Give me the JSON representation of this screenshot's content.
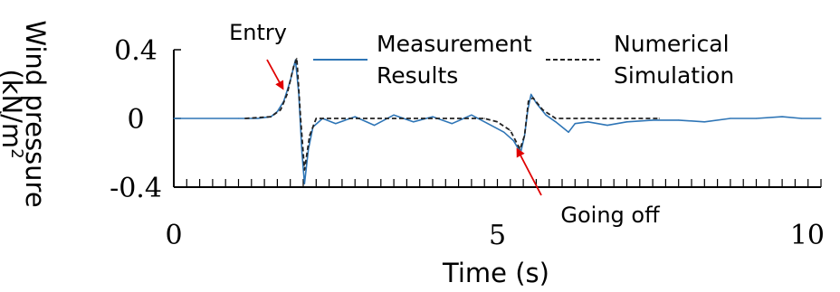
{
  "chart_data": {
    "type": "line",
    "xlabel": "Time (s)",
    "ylabel_line1": "Wind pressure",
    "ylabel_line2_base": "(kN/m",
    "ylabel_line2_sup": "2",
    "ylabel_line3": ")",
    "xlim": [
      0,
      10
    ],
    "ylim": [
      -0.4,
      0.4
    ],
    "x_tick_labels": [
      {
        "value": 0,
        "label": "0"
      },
      {
        "value": 5,
        "label": "5"
      },
      {
        "value": 10,
        "label": "10"
      }
    ],
    "y_tick_labels": [
      {
        "value": 0.4,
        "label": "0.4"
      },
      {
        "value": 0,
        "label": "0"
      },
      {
        "value": -0.4,
        "label": "-0.4"
      }
    ],
    "minor_x_ticks_step": 0.2,
    "legend_placement": "top",
    "legend": [
      {
        "line1": "Measurement",
        "line2": "Results",
        "style": "solid",
        "color": "#2e75b6"
      },
      {
        "line1": "Numerical",
        "line2": "Simulation",
        "style": "dashed",
        "color": "#222222"
      }
    ],
    "annotations": [
      {
        "text": "Entry",
        "x": 1.75,
        "y": 0.28,
        "arrow_color": "#e00000"
      },
      {
        "text": "Going off",
        "x": 5.4,
        "y": -0.18,
        "arrow_color": "#e00000"
      }
    ],
    "series": [
      {
        "name": "Measurement Results",
        "color": "#2e75b6",
        "style": "solid",
        "points": [
          [
            0,
            0.0
          ],
          [
            1.0,
            0.0
          ],
          [
            1.3,
            0.0
          ],
          [
            1.5,
            0.01
          ],
          [
            1.6,
            0.04
          ],
          [
            1.7,
            0.1
          ],
          [
            1.8,
            0.22
          ],
          [
            1.88,
            0.34
          ],
          [
            1.93,
            0.15
          ],
          [
            1.98,
            -0.2
          ],
          [
            2.02,
            -0.38
          ],
          [
            2.08,
            -0.18
          ],
          [
            2.15,
            -0.05
          ],
          [
            2.3,
            0.0
          ],
          [
            2.5,
            -0.03
          ],
          [
            2.8,
            0.01
          ],
          [
            3.1,
            -0.04
          ],
          [
            3.4,
            0.02
          ],
          [
            3.7,
            -0.02
          ],
          [
            4.0,
            0.01
          ],
          [
            4.3,
            -0.03
          ],
          [
            4.6,
            0.02
          ],
          [
            4.9,
            -0.04
          ],
          [
            5.1,
            -0.08
          ],
          [
            5.25,
            -0.13
          ],
          [
            5.36,
            -0.2
          ],
          [
            5.42,
            -0.1
          ],
          [
            5.47,
            0.05
          ],
          [
            5.52,
            0.14
          ],
          [
            5.6,
            0.09
          ],
          [
            5.75,
            0.02
          ],
          [
            5.9,
            -0.02
          ],
          [
            6.0,
            -0.05
          ],
          [
            6.1,
            -0.08
          ],
          [
            6.2,
            -0.03
          ],
          [
            6.4,
            -0.02
          ],
          [
            6.7,
            -0.04
          ],
          [
            7.0,
            -0.02
          ],
          [
            7.4,
            -0.01
          ],
          [
            7.8,
            -0.01
          ],
          [
            8.2,
            -0.02
          ],
          [
            8.6,
            0.0
          ],
          [
            9.0,
            0.0
          ],
          [
            9.4,
            0.01
          ],
          [
            9.7,
            0.0
          ],
          [
            10.0,
            0.0
          ]
        ]
      },
      {
        "name": "Numerical Simulation",
        "color": "#222222",
        "style": "dashed",
        "points": [
          [
            1.1,
            0.0
          ],
          [
            1.5,
            0.01
          ],
          [
            1.65,
            0.05
          ],
          [
            1.75,
            0.14
          ],
          [
            1.85,
            0.3
          ],
          [
            1.9,
            0.35
          ],
          [
            1.96,
            0.0
          ],
          [
            2.02,
            -0.3
          ],
          [
            2.1,
            -0.1
          ],
          [
            2.2,
            0.0
          ],
          [
            4.8,
            0.0
          ],
          [
            5.0,
            -0.02
          ],
          [
            5.2,
            -0.07
          ],
          [
            5.35,
            -0.18
          ],
          [
            5.42,
            -0.1
          ],
          [
            5.48,
            0.1
          ],
          [
            5.55,
            0.12
          ],
          [
            5.7,
            0.05
          ],
          [
            5.9,
            0.0
          ],
          [
            7.5,
            0.0
          ]
        ]
      }
    ]
  }
}
